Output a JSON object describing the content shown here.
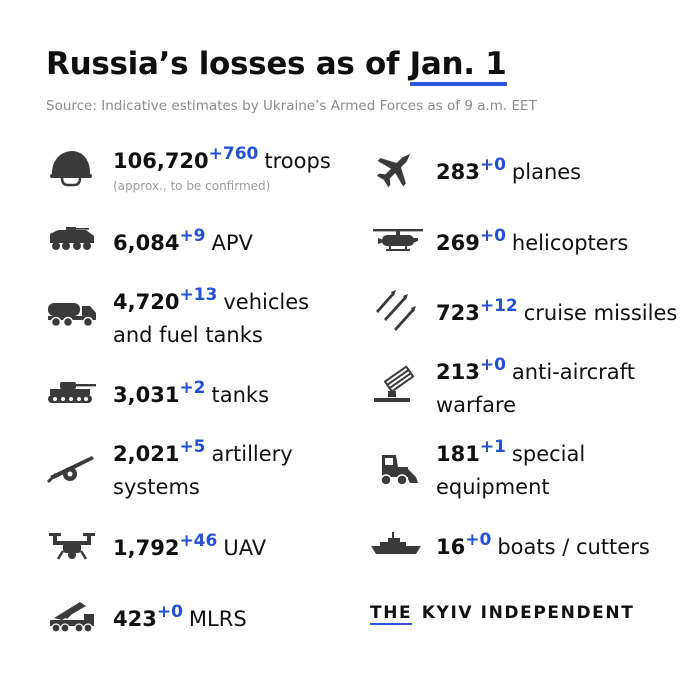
{
  "header": {
    "title_prefix": "Russia’s losses as of ",
    "title_date": "Jan. 1",
    "source": "Source: Indicative estimates by Ukraine’s Armed Forces as of 9 a.m. EET"
  },
  "colors": {
    "accent": "#2450d6",
    "text": "#111111",
    "icon": "#3a3a3a",
    "muted": "#8a8a8a"
  },
  "left_items": [
    {
      "icon": "helmet-icon",
      "value": "106,720",
      "delta": "+760",
      "line1": "troops",
      "note": "(approx., to be confirmed)"
    },
    {
      "icon": "apv-icon",
      "value": "6,084",
      "delta": "+9",
      "line1": "APV"
    },
    {
      "icon": "fuel-truck-icon",
      "value": "4,720",
      "delta": "+13",
      "line1": "vehicles",
      "line2": "and fuel tanks"
    },
    {
      "icon": "tank-icon",
      "value": "3,031",
      "delta": "+2",
      "line1": "tanks"
    },
    {
      "icon": "artillery-icon",
      "value": "2,021",
      "delta": "+5",
      "line1": "artillery",
      "line2": "systems"
    },
    {
      "icon": "drone-icon",
      "value": "1,792",
      "delta": "+46",
      "line1": "UAV"
    },
    {
      "icon": "mlrs-icon",
      "value": "423",
      "delta": "+0",
      "line1": "MLRS"
    }
  ],
  "right_items": [
    {
      "icon": "plane-icon",
      "value": "283",
      "delta": "+0",
      "line1": "planes"
    },
    {
      "icon": "helicopter-icon",
      "value": "269",
      "delta": "+0",
      "line1": "helicopters"
    },
    {
      "icon": "missile-icon",
      "value": "723",
      "delta": "+12",
      "line1": "cruise missiles"
    },
    {
      "icon": "anti-aircraft-icon",
      "value": "213",
      "delta": "+0",
      "line1": "anti-aircraft",
      "line2": "warfare"
    },
    {
      "icon": "bulldozer-icon",
      "value": "181",
      "delta": "+1",
      "line1": "special",
      "line2": "equipment"
    },
    {
      "icon": "boat-icon",
      "value": "16",
      "delta": "+0",
      "line1": "boats / cutters"
    }
  ],
  "brand": {
    "the": "THE",
    "name": "KYIV INDEPENDENT"
  }
}
